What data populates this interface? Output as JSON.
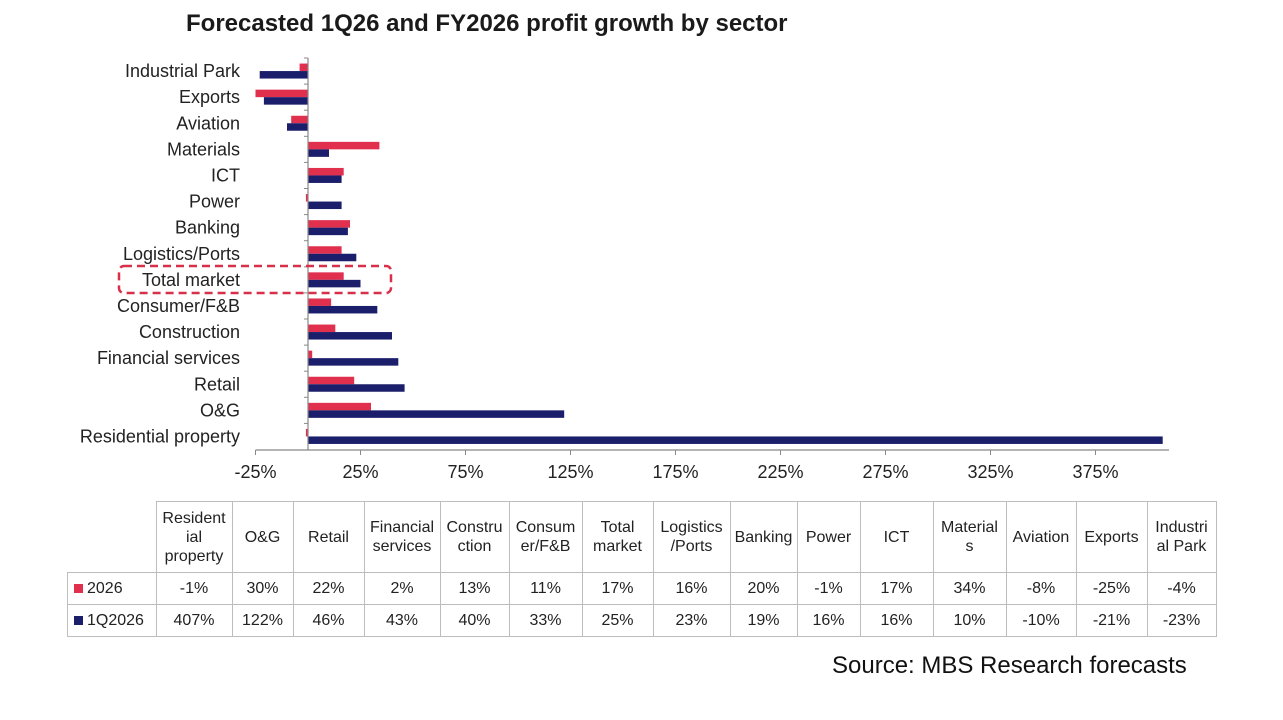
{
  "title": "Forecasted 1Q26 and FY2026 profit growth by sector",
  "source": "Source: MBS Research forecasts",
  "colors": {
    "fy2026": "#e0304e",
    "q1_2026": "#1b1f6b",
    "highlight": "#d8304a",
    "axis": "#888888"
  },
  "chart_data": {
    "type": "bar",
    "orientation": "horizontal",
    "title": "Forecasted 1Q26 and FY2026 profit growth by sector",
    "xlabel": "",
    "ylabel": "",
    "xlim": [
      -25,
      410
    ],
    "x_ticks": [
      -25,
      25,
      75,
      125,
      175,
      225,
      275,
      325,
      375
    ],
    "x_tick_labels": [
      "-25%",
      "25%",
      "75%",
      "125%",
      "175%",
      "225%",
      "275%",
      "325%",
      "375%"
    ],
    "grid": false,
    "categories": [
      "Industrial Park",
      "Exports",
      "Aviation",
      "Materials",
      "ICT",
      "Power",
      "Banking",
      "Logistics/Ports",
      "Total market",
      "Consumer/F&B",
      "Construction",
      "Financial services",
      "Retail",
      "O&G",
      "Residential property"
    ],
    "series": [
      {
        "name": "2026",
        "color": "#e0304e",
        "values": [
          -4,
          -25,
          -8,
          34,
          17,
          -1,
          20,
          16,
          17,
          11,
          13,
          2,
          22,
          30,
          -1
        ]
      },
      {
        "name": "1Q2026",
        "color": "#1b1f6b",
        "values": [
          -23,
          -21,
          -10,
          10,
          16,
          16,
          19,
          23,
          25,
          33,
          40,
          43,
          46,
          122,
          407
        ]
      }
    ],
    "highlighted_category": "Total market",
    "legend": "in-table"
  },
  "table": {
    "headers": [
      "Resident ial property",
      "O&G",
      "Retail",
      "Financial services",
      "Constru ction",
      "Consum er/F&B",
      "Total market",
      "Logistics /Ports",
      "Banking",
      "Power",
      "ICT",
      "Material s",
      "Aviation",
      "Exports",
      "Industri al Park"
    ],
    "header_lines": [
      [
        "Resident",
        "ial",
        "property"
      ],
      [
        "O&G"
      ],
      [
        "Retail"
      ],
      [
        "Financial",
        "services"
      ],
      [
        "Constru",
        "ction"
      ],
      [
        "Consum",
        "er/F&B"
      ],
      [
        "Total",
        "market"
      ],
      [
        "Logistics",
        "/Ports"
      ],
      [
        "Banking"
      ],
      [
        "Power"
      ],
      [
        "ICT"
      ],
      [
        "Material",
        "s"
      ],
      [
        "Aviation"
      ],
      [
        "Exports"
      ],
      [
        "Industri",
        "al Park"
      ]
    ],
    "rows": [
      {
        "label": "2026",
        "color": "#e0304e",
        "values": [
          "-1%",
          "30%",
          "22%",
          "2%",
          "13%",
          "11%",
          "17%",
          "16%",
          "20%",
          "-1%",
          "17%",
          "34%",
          "-8%",
          "-25%",
          "-4%"
        ]
      },
      {
        "label": "1Q2026",
        "color": "#1b1f6b",
        "values": [
          "407%",
          "122%",
          "46%",
          "43%",
          "40%",
          "33%",
          "25%",
          "23%",
          "19%",
          "16%",
          "16%",
          "10%",
          "-10%",
          "-21%",
          "-23%"
        ]
      }
    ]
  }
}
